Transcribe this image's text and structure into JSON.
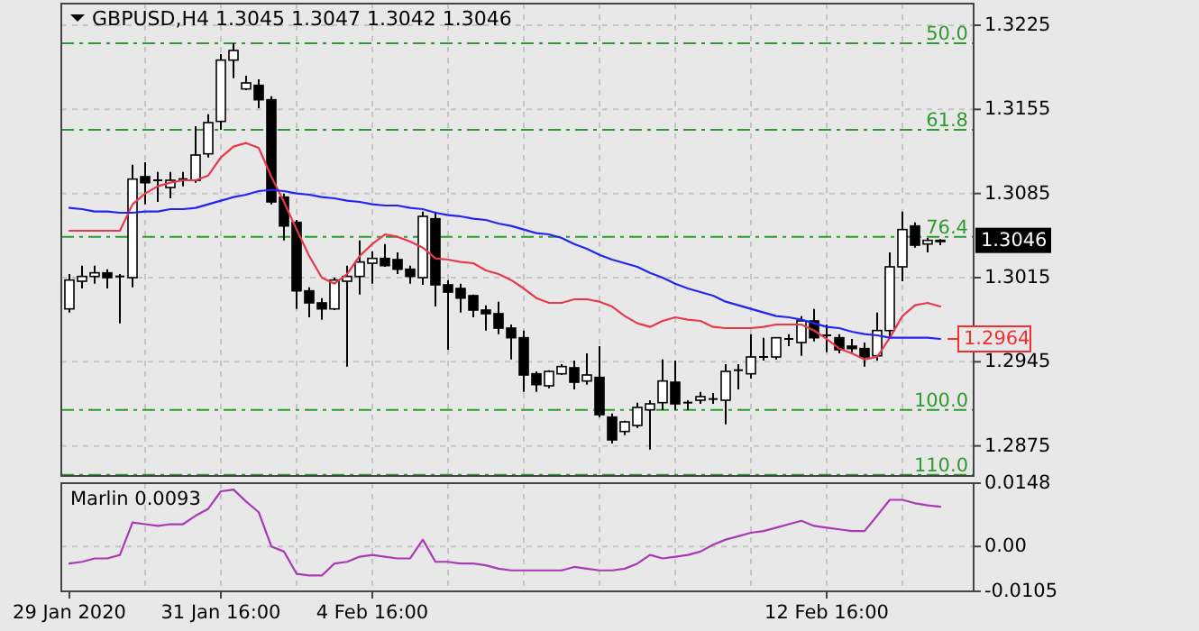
{
  "chart_data": [
    {
      "type": "candlestick",
      "title": "GBPUSD,H4 1.3045 1.3047 1.3042 1.3046",
      "categories": [
        null,
        null,
        null,
        null,
        null,
        null,
        null,
        null,
        null,
        null,
        null,
        null,
        null,
        null,
        null,
        null,
        null,
        null,
        null,
        null,
        null,
        null,
        null,
        null,
        null,
        null,
        null,
        null,
        null,
        null,
        null,
        null,
        null,
        null,
        null,
        null,
        null,
        null,
        null,
        null,
        null,
        null,
        null,
        null,
        null,
        null,
        null,
        null,
        null,
        null,
        null,
        null,
        null,
        null,
        null,
        null,
        null,
        null,
        null,
        null,
        null,
        null,
        null,
        null,
        null,
        null,
        null,
        null,
        null,
        null
      ],
      "ohlc": [
        [
          1.2989,
          1.3018,
          1.2986,
          1.3013
        ],
        [
          1.3012,
          1.3025,
          1.3006,
          1.3016
        ],
        [
          1.3016,
          1.3025,
          1.301,
          1.3019
        ],
        [
          1.3019,
          1.3022,
          1.3006,
          1.3015
        ],
        [
          1.3016,
          1.3018,
          1.2977,
          1.3016
        ],
        [
          1.3015,
          1.3109,
          1.3007,
          1.3097
        ],
        [
          1.3099,
          1.3111,
          1.3076,
          1.3094
        ],
        [
          1.3096,
          1.3103,
          1.3078,
          1.3096
        ],
        [
          1.309,
          1.3103,
          1.3081,
          1.3096
        ],
        [
          1.3097,
          1.3103,
          1.3091,
          1.3097
        ],
        [
          1.3096,
          1.3141,
          1.3094,
          1.3117
        ],
        [
          1.3118,
          1.3151,
          1.3115,
          1.3144
        ],
        [
          1.3145,
          1.3201,
          1.3138,
          1.3196
        ],
        [
          1.3196,
          1.321,
          1.3181,
          1.3204
        ],
        [
          1.3172,
          1.3183,
          1.3171,
          1.3177
        ],
        [
          1.3175,
          1.318,
          1.3156,
          1.3163
        ],
        [
          1.3163,
          1.3166,
          1.3076,
          1.3078
        ],
        [
          1.3082,
          1.3085,
          1.3046,
          1.3058
        ],
        [
          1.3061,
          1.3063,
          1.2989,
          1.3004
        ],
        [
          1.3004,
          1.3007,
          1.2982,
          1.2994
        ],
        [
          1.2994,
          1.2998,
          1.298,
          1.2989
        ],
        [
          1.2989,
          1.3015,
          1.2988,
          1.3013
        ],
        [
          1.3012,
          1.3025,
          1.2941,
          1.3016
        ],
        [
          1.3016,
          1.3046,
          1.3001,
          1.3028
        ],
        [
          1.3027,
          1.3037,
          1.301,
          1.3031
        ],
        [
          1.3031,
          1.3043,
          1.3024,
          1.3025
        ],
        [
          1.303,
          1.3036,
          1.3018,
          1.3022
        ],
        [
          1.3022,
          1.3025,
          1.301,
          1.3016
        ],
        [
          1.3015,
          1.307,
          1.3009,
          1.3066
        ],
        [
          1.3064,
          1.307,
          1.2991,
          1.3009
        ],
        [
          1.3009,
          1.3013,
          1.2955,
          1.3003
        ],
        [
          1.3006,
          1.301,
          1.2986,
          1.2998
        ],
        [
          1.3,
          1.3001,
          1.2982,
          1.2988
        ],
        [
          1.2988,
          1.2992,
          1.2971,
          1.2985
        ],
        [
          1.2985,
          1.2995,
          1.2968,
          1.2973
        ],
        [
          1.2973,
          1.2976,
          1.2947,
          1.2965
        ],
        [
          1.2965,
          1.2971,
          1.292,
          1.2934
        ],
        [
          1.2935,
          1.2937,
          1.292,
          1.2926
        ],
        [
          1.2925,
          1.2938,
          1.2923,
          1.2937
        ],
        [
          1.2935,
          1.2943,
          1.2934,
          1.2941
        ],
        [
          1.294,
          1.2946,
          1.2922,
          1.2928
        ],
        [
          1.2929,
          1.2952,
          1.2926,
          1.2934
        ],
        [
          1.2932,
          1.2958,
          1.2899,
          1.2901
        ],
        [
          1.2899,
          1.2902,
          1.2877,
          1.288
        ],
        [
          1.2887,
          1.2896,
          1.2884,
          1.2895
        ],
        [
          1.2892,
          1.2911,
          1.289,
          1.2907
        ],
        [
          1.2905,
          1.2913,
          1.2872,
          1.291
        ],
        [
          1.2911,
          1.2947,
          1.2905,
          1.2929
        ],
        [
          1.2928,
          1.2946,
          1.2905,
          1.291
        ],
        [
          1.2911,
          1.2913,
          1.2905,
          1.2911
        ],
        [
          1.2913,
          1.292,
          1.291,
          1.2916
        ],
        [
          1.2914,
          1.2919,
          1.291,
          1.2914
        ],
        [
          1.2913,
          1.2943,
          1.2893,
          1.2937
        ],
        [
          1.2938,
          1.2943,
          1.2922,
          1.2938
        ],
        [
          1.2935,
          1.2968,
          1.2931,
          1.2949
        ],
        [
          1.2949,
          1.2965,
          1.2946,
          1.2949
        ],
        [
          1.2949,
          1.2965,
          1.2947,
          1.2965
        ],
        [
          1.2964,
          1.2968,
          1.2958,
          1.2964
        ],
        [
          1.2961,
          1.2983,
          1.295,
          1.2979
        ],
        [
          1.2979,
          1.2989,
          1.2962,
          1.2965
        ],
        [
          1.2967,
          1.2976,
          1.2953,
          1.2967
        ],
        [
          1.2965,
          1.2968,
          1.2952,
          1.2955
        ],
        [
          1.2958,
          1.2964,
          1.2953,
          1.2956
        ],
        [
          1.2956,
          1.2961,
          1.2941,
          1.2949
        ],
        [
          1.295,
          1.2986,
          1.2946,
          1.2971
        ],
        [
          1.2971,
          1.3036,
          1.2965,
          1.3024
        ],
        [
          1.3024,
          1.307,
          1.3012,
          1.3055
        ],
        [
          1.3058,
          1.3061,
          1.304,
          1.3042
        ],
        [
          1.3043,
          1.3048,
          1.3036,
          1.3046
        ],
        [
          1.3045,
          1.3047,
          1.3042,
          1.3046
        ]
      ],
      "series": [
        {
          "type": "line",
          "color": "#e8394c",
          "values": [
            1.3054,
            1.3054,
            1.3054,
            1.3054,
            1.3054,
            1.3076,
            1.3085,
            1.3091,
            1.3094,
            1.3096,
            1.3096,
            1.31,
            1.3115,
            1.3124,
            1.3127,
            1.3123,
            1.3099,
            1.3078,
            1.3055,
            1.3033,
            1.3015,
            1.301,
            1.3018,
            1.3033,
            1.3043,
            1.3051,
            1.3049,
            1.3045,
            1.304,
            1.3031,
            1.303,
            1.3028,
            1.3027,
            1.3021,
            1.3018,
            1.3013,
            1.3006,
            1.2998,
            1.2994,
            1.2994,
            1.2997,
            1.2997,
            1.2995,
            1.2991,
            1.2983,
            1.2977,
            1.2974,
            1.2979,
            1.2982,
            1.298,
            1.2979,
            1.2974,
            1.2973,
            1.2973,
            1.2973,
            1.2974,
            1.2976,
            1.2976,
            1.2976,
            1.2971,
            1.2964,
            1.2956,
            1.2952,
            1.2947,
            1.2949,
            1.2965,
            1.2983,
            1.2992,
            1.2994,
            1.2991
          ]
        },
        {
          "type": "line",
          "color": "#2424f0",
          "values": [
            1.3073,
            1.3072,
            1.307,
            1.307,
            1.3069,
            1.3069,
            1.307,
            1.307,
            1.3072,
            1.3072,
            1.3073,
            1.3076,
            1.3079,
            1.3082,
            1.3084,
            1.3087,
            1.3088,
            1.3087,
            1.3085,
            1.3084,
            1.3082,
            1.3081,
            1.3079,
            1.3078,
            1.3076,
            1.3075,
            1.3075,
            1.3073,
            1.3072,
            1.3069,
            1.3067,
            1.3066,
            1.3064,
            1.3063,
            1.306,
            1.3058,
            1.3055,
            1.3052,
            1.3051,
            1.3048,
            1.3043,
            1.3039,
            1.3034,
            1.303,
            1.3027,
            1.3024,
            1.3019,
            1.3015,
            1.301,
            1.3006,
            1.3003,
            1.3,
            1.2995,
            1.2992,
            1.2989,
            1.2986,
            1.2983,
            1.2982,
            1.298,
            1.2977,
            1.2974,
            1.2973,
            1.297,
            1.2968,
            1.2967,
            1.2965,
            1.2965,
            1.2965,
            1.2965,
            1.2964
          ]
        }
      ],
      "ylim": [
        1.285,
        1.3243
      ],
      "yticks": [
        1.3225,
        1.3155,
        1.3085,
        1.3015,
        1.2945,
        1.2875
      ],
      "grid": true,
      "tick_labels": "y",
      "ref_lines": [
        {
          "axis": "y",
          "value": 1.321,
          "color": "#2e9a2e",
          "line_style": "dashed"
        },
        {
          "axis": "y",
          "value": 1.3138,
          "color": "#2e9a2e",
          "line_style": "dashed"
        },
        {
          "axis": "y",
          "value": 1.3049,
          "color": "#2e9a2e",
          "line_style": "dashed"
        },
        {
          "axis": "y",
          "value": 1.2905,
          "color": "#2e9a2e",
          "line_style": "dashed"
        },
        {
          "axis": "y",
          "value": 1.2851,
          "color": "#2e9a2e",
          "line_style": "dashed"
        }
      ],
      "annotations": [
        "1.3046",
        "1.2964",
        {
          "text": "50.0",
          "y": 1.321
        },
        {
          "text": "61.8",
          "y": 1.3138
        },
        {
          "text": "76.4",
          "y": 1.3049
        },
        {
          "text": "100.0",
          "y": 1.2905
        },
        {
          "text": "110.0",
          "y": 1.2851
        }
      ]
    },
    {
      "type": "line",
      "title": "Marlin 0.0093",
      "categories": [
        "29 Jan 2020",
        null,
        null,
        null,
        null,
        null,
        null,
        null,
        null,
        null,
        null,
        null,
        "31 Jan 16:00",
        null,
        null,
        null,
        null,
        null,
        null,
        null,
        null,
        null,
        null,
        null,
        "4 Feb 16:00",
        null,
        null,
        null,
        null,
        null,
        null,
        null,
        null,
        null,
        null,
        null,
        null,
        null,
        null,
        null,
        null,
        null,
        null,
        null,
        null,
        null,
        null,
        null,
        null,
        null,
        null,
        null,
        null,
        null,
        null,
        null,
        null,
        null,
        null,
        null,
        "12 Feb 16:00",
        null,
        null,
        null,
        null,
        null,
        null,
        null,
        null,
        null
      ],
      "series": [
        {
          "color": "#a83ab4",
          "values": [
            -0.004,
            -0.0036,
            -0.0028,
            -0.0028,
            -0.002,
            0.0056,
            0.0052,
            0.0048,
            0.0052,
            0.0052,
            0.0072,
            0.0088,
            0.0129,
            0.0133,
            0.0105,
            0.008,
            0.0,
            -0.0012,
            -0.0064,
            -0.0068,
            -0.0068,
            -0.004,
            -0.0036,
            -0.0024,
            -0.002,
            -0.0024,
            -0.0028,
            -0.0028,
            0.0016,
            -0.0036,
            -0.0036,
            -0.004,
            -0.004,
            -0.0044,
            -0.0052,
            -0.0056,
            -0.0056,
            -0.0056,
            -0.0056,
            -0.0056,
            -0.0048,
            -0.0052,
            -0.0056,
            -0.0056,
            -0.0052,
            -0.004,
            -0.002,
            -0.0028,
            -0.0024,
            -0.002,
            -0.0012,
            0.0004,
            0.0016,
            0.0024,
            0.0032,
            0.0036,
            0.0044,
            0.0052,
            0.006,
            0.0048,
            0.0044,
            0.004,
            0.0036,
            0.0036,
            0.0072,
            0.0109,
            0.0109,
            0.0101,
            0.0096,
            0.0093
          ]
        }
      ],
      "ylim": [
        -0.0105,
        0.0148
      ],
      "yticks": [
        0.0148,
        {
          "value": 0,
          "label": "0.00"
        },
        -0.0105
      ],
      "grid": true
    }
  ]
}
